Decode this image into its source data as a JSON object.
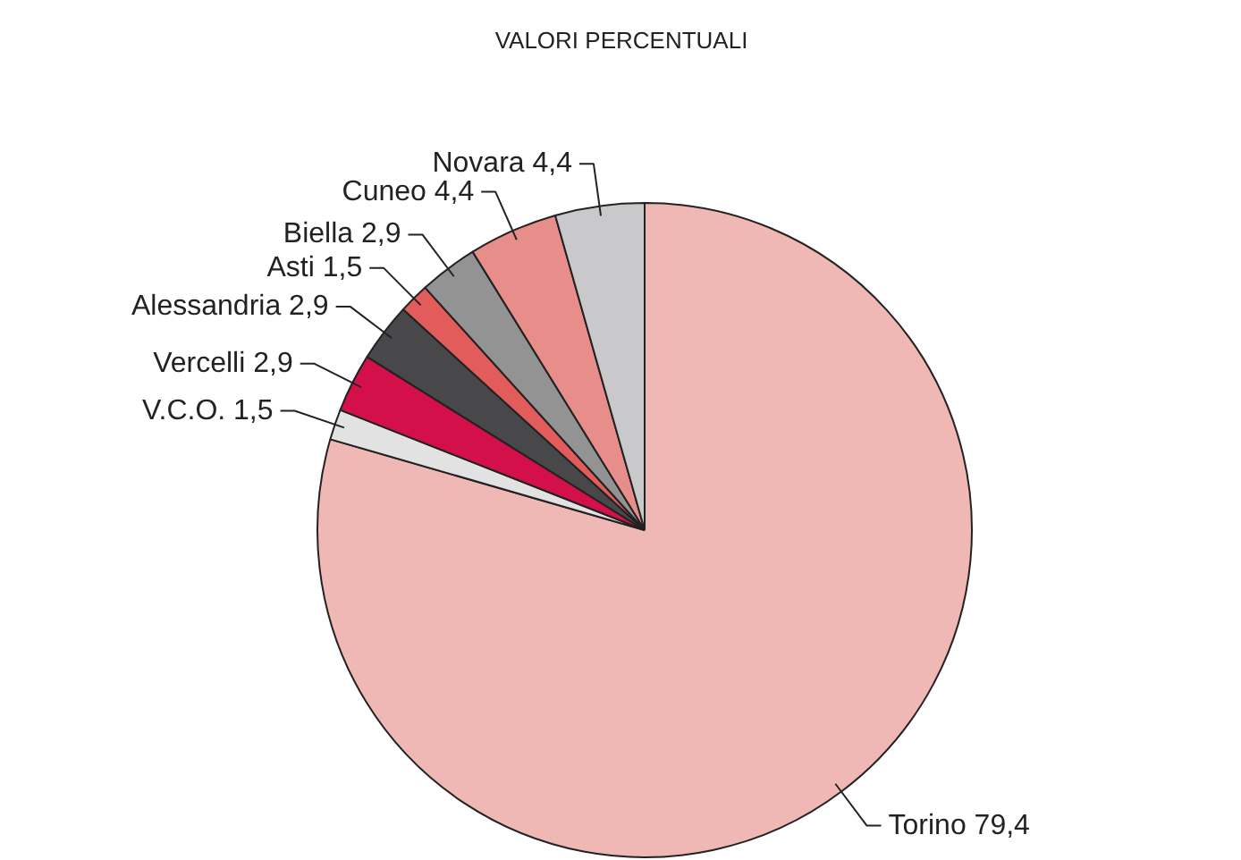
{
  "chart_data": {
    "type": "pie",
    "title": "VALORI PERCENTUALI",
    "categories": [
      "Torino",
      "V.C.O.",
      "Vercelli",
      "Alessandria",
      "Asti",
      "Biella",
      "Cuneo",
      "Novara"
    ],
    "values": [
      79.4,
      1.5,
      2.9,
      2.9,
      1.5,
      2.9,
      4.4,
      4.4
    ],
    "value_labels": [
      "79,4",
      "1,5",
      "2,9",
      "2,9",
      "1,5",
      "2,9",
      "4,4",
      "4,4"
    ],
    "colors": [
      "#f0b8b4",
      "#e2e2e2",
      "#d3104a",
      "#48484a",
      "#e25c5c",
      "#939393",
      "#e88e8a",
      "#c9c9cc"
    ]
  }
}
